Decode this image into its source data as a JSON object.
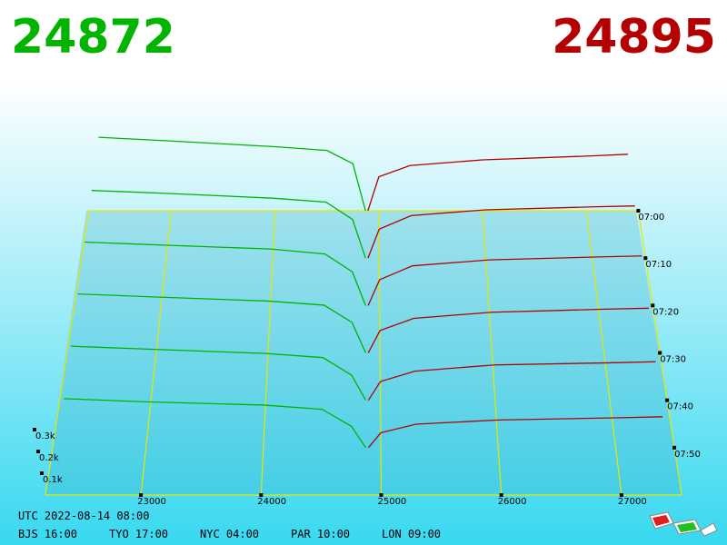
{
  "chart_data": {
    "type": "depth3d",
    "bid_price": 24872,
    "ask_price": 24895,
    "bid_color": "#00b400",
    "ask_color": "#b40000",
    "grid_color": "#e6e600",
    "xlim": [
      22205,
      27500
    ],
    "xticks": [
      23000,
      24000,
      25000,
      26000,
      27000
    ],
    "vticks": [
      {
        "value": 100,
        "label": "0.1k"
      },
      {
        "value": 200,
        "label": "0.2k"
      },
      {
        "value": 300,
        "label": "0.3k"
      }
    ],
    "bid_prices": [
      22300,
      23000,
      24000,
      24500,
      24750,
      24872
    ],
    "ask_prices": [
      24895,
      25000,
      25300,
      26000,
      27000,
      27400
    ],
    "snapshots": [
      {
        "time": "07:00",
        "bids": [
          390,
          370,
          340,
          320,
          250,
          0
        ],
        "asks": [
          0,
          180,
          240,
          270,
          290,
          300
        ]
      },
      {
        "time": "07:10",
        "bids": [
          350,
          335,
          310,
          290,
          200,
          0
        ],
        "asks": [
          0,
          150,
          220,
          250,
          265,
          270
        ]
      },
      {
        "time": "07:20",
        "bids": [
          320,
          305,
          285,
          260,
          170,
          0
        ],
        "asks": [
          0,
          130,
          200,
          230,
          245,
          250
        ]
      },
      {
        "time": "07:30",
        "bids": [
          290,
          275,
          255,
          235,
          150,
          0
        ],
        "asks": [
          0,
          110,
          170,
          200,
          215,
          220
        ]
      },
      {
        "time": "07:40",
        "bids": [
          260,
          245,
          225,
          205,
          120,
          0
        ],
        "asks": [
          0,
          90,
          140,
          170,
          180,
          185
        ]
      },
      {
        "time": "07:50",
        "bids": [
          230,
          215,
          200,
          180,
          100,
          0
        ],
        "asks": [
          0,
          70,
          110,
          130,
          140,
          145
        ]
      }
    ]
  },
  "footer": {
    "utc": "UTC 2022-08-14 08:00",
    "zones": [
      "BJS 16:00",
      "TYO 17:00",
      "NYC 04:00",
      "PAR 10:00",
      "LON 09:00"
    ]
  }
}
